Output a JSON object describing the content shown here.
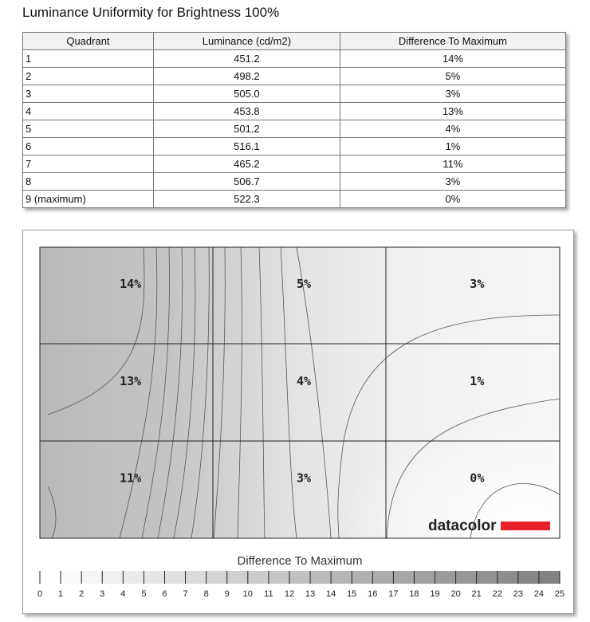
{
  "title": "Luminance Uniformity for Brightness 100%",
  "table": {
    "headers": [
      "Quadrant",
      "Luminance (cd/m2)",
      "Difference To Maximum"
    ],
    "rows": [
      [
        "1",
        "451.2",
        "14%"
      ],
      [
        "2",
        "498.2",
        "5%"
      ],
      [
        "3",
        "505.0",
        "3%"
      ],
      [
        "4",
        "453.8",
        "13%"
      ],
      [
        "5",
        "501.2",
        "4%"
      ],
      [
        "6",
        "516.1",
        "1%"
      ],
      [
        "7",
        "465.2",
        "11%"
      ],
      [
        "8",
        "506.7",
        "3%"
      ],
      [
        "9 (maximum)",
        "522.3",
        "0%"
      ]
    ]
  },
  "heatmap": {
    "cells": [
      [
        "14%",
        "5%",
        "3%"
      ],
      [
        "13%",
        "4%",
        "1%"
      ],
      [
        "11%",
        "3%",
        "0%"
      ]
    ],
    "brand": "datacolor",
    "legend_title": "Difference To Maximum",
    "legend_ticks": [
      0,
      1,
      2,
      3,
      4,
      5,
      6,
      7,
      8,
      9,
      10,
      11,
      12,
      13,
      14,
      15,
      16,
      17,
      18,
      19,
      20,
      21,
      22,
      23,
      24,
      25
    ]
  }
}
